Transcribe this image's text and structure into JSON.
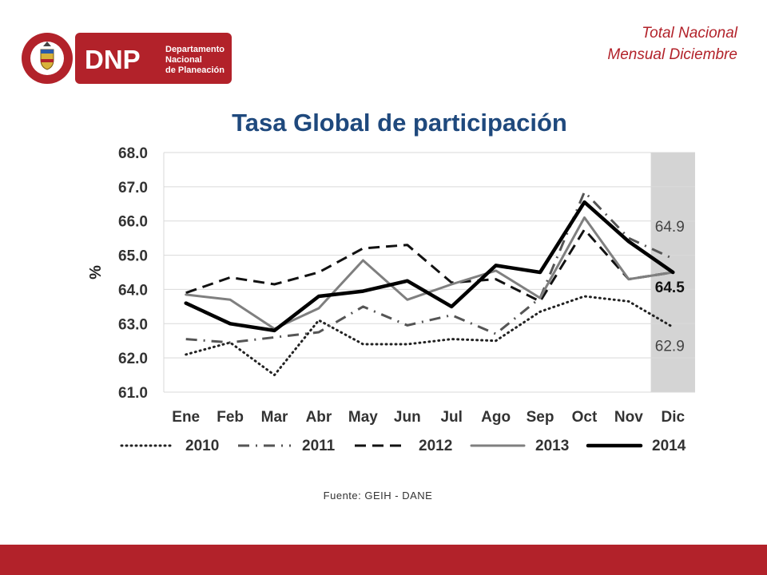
{
  "header": {
    "corner_line1": "Total Nacional",
    "corner_line2": "Mensual Diciembre",
    "logo": {
      "seal_top_text": "REPÚBLICA",
      "seal_bottom_text": "DE COLOMBIA",
      "acronym": "DNP",
      "line1": "Departamento",
      "line2": "Nacional",
      "line3": "de Planeación",
      "brand_color": "#b2222a"
    }
  },
  "title": "Tasa Global de participación",
  "source": "Fuente: GEIH - DANE",
  "chart_data": {
    "type": "line",
    "title": "Tasa Global de participación",
    "xlabel": "",
    "ylabel": "%",
    "ylim": [
      61.0,
      68.0
    ],
    "yticks": [
      "61.0",
      "62.0",
      "63.0",
      "64.0",
      "65.0",
      "66.0",
      "67.0",
      "68.0"
    ],
    "grid": true,
    "legend_position": "bottom",
    "highlight_category": "Dic",
    "categories": [
      "Ene",
      "Feb",
      "Mar",
      "Abr",
      "May",
      "Jun",
      "Jul",
      "Ago",
      "Sep",
      "Oct",
      "Nov",
      "Dic"
    ],
    "series": [
      {
        "name": "2010",
        "style": "dotted",
        "color": "#222222",
        "values": [
          62.1,
          62.45,
          61.5,
          63.1,
          62.4,
          62.4,
          62.55,
          62.5,
          63.35,
          63.8,
          63.65,
          62.9
        ]
      },
      {
        "name": "2011",
        "style": "dashdot",
        "color": "#555555",
        "values": [
          62.55,
          62.45,
          62.6,
          62.75,
          63.5,
          62.95,
          63.25,
          62.7,
          63.75,
          66.85,
          65.5,
          64.9
        ]
      },
      {
        "name": "2012",
        "style": "dashed",
        "color": "#111111",
        "values": [
          63.9,
          64.35,
          64.15,
          64.5,
          65.2,
          65.3,
          64.2,
          64.3,
          63.65,
          65.75,
          64.3,
          64.5
        ]
      },
      {
        "name": "2013",
        "style": "solid",
        "color": "#7f7f7f",
        "values": [
          63.85,
          63.7,
          62.85,
          63.45,
          64.85,
          63.7,
          64.15,
          64.55,
          63.75,
          66.1,
          64.3,
          64.5
        ]
      },
      {
        "name": "2014",
        "style": "solid-thick",
        "color": "#000000",
        "values": [
          63.6,
          63.0,
          62.8,
          63.8,
          63.95,
          64.25,
          63.5,
          64.7,
          64.5,
          66.55,
          65.4,
          64.5
        ]
      }
    ],
    "annotations": [
      {
        "text": "64.9",
        "bold": false
      },
      {
        "text": "64.5",
        "bold": true
      },
      {
        "text": "62.9",
        "bold": false
      }
    ]
  }
}
